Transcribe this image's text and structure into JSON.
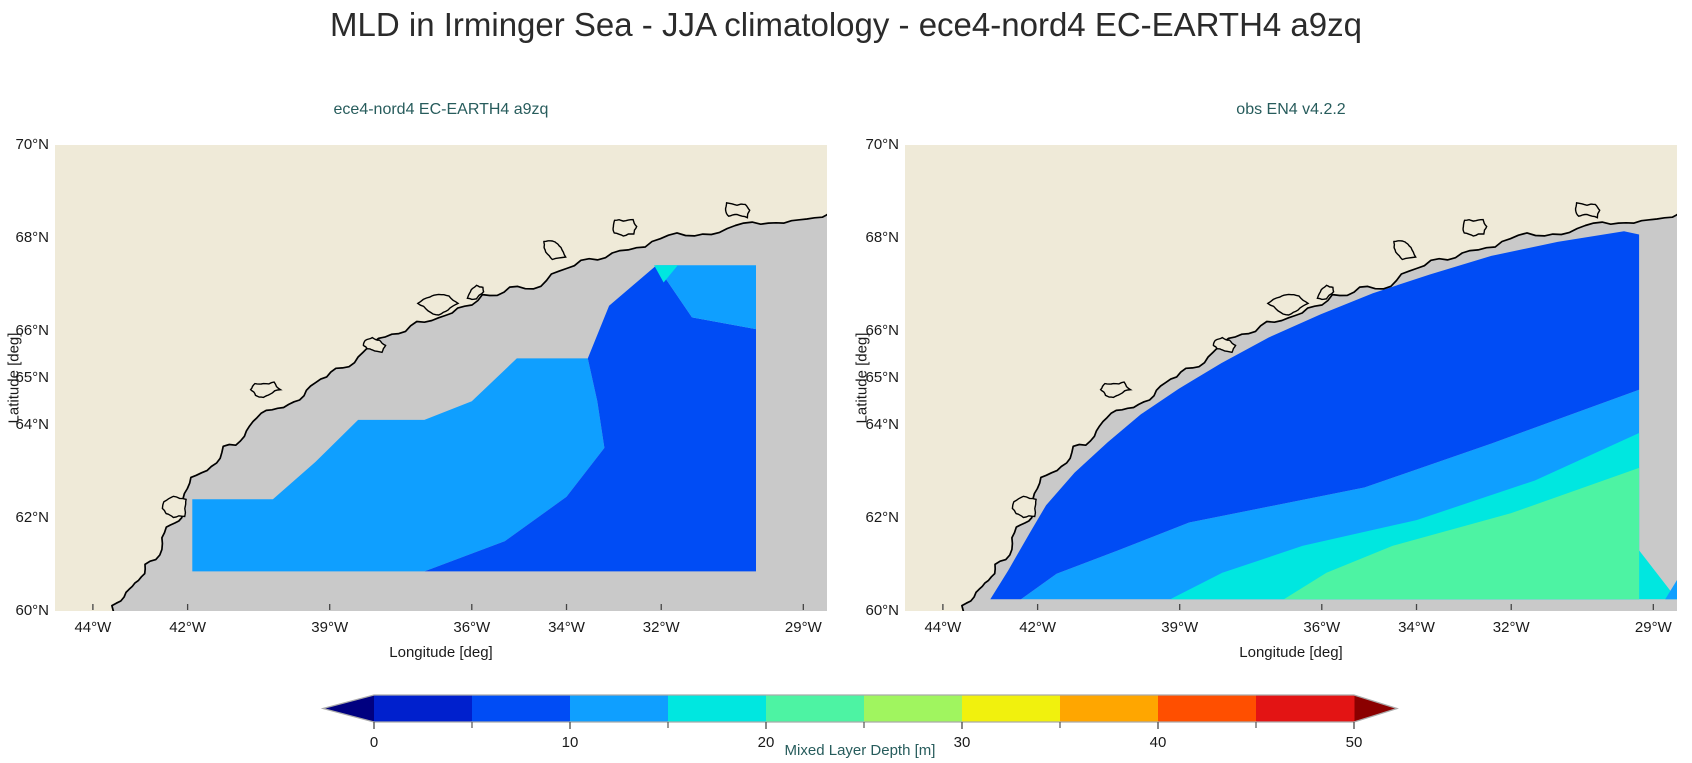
{
  "main_title": "MLD in Irminger Sea - JJA climatology - ece4-nord4 EC-EARTH4 a9zq",
  "colorbar": {
    "label": "Mixed Layer Depth [m]",
    "range": [
      0,
      50
    ],
    "levels": [
      0,
      5,
      10,
      15,
      20,
      25,
      30,
      35,
      40,
      45,
      50
    ],
    "colors": [
      "#0020cd",
      "#004cf5",
      "#0f9fff",
      "#00e7e0",
      "#4df3a3",
      "#a0f55f",
      "#f1f10d",
      "#ffa600",
      "#ff4f00",
      "#e31414"
    ],
    "under_color": "#000080",
    "over_color": "#8b0000",
    "outline_color": "#aaaaaa",
    "tick_color": "#555555",
    "ticks_major": {
      "values": [
        0,
        10,
        20,
        30,
        40,
        50
      ],
      "labels": [
        "0",
        "10",
        "20",
        "30",
        "40",
        "50"
      ]
    },
    "ticks_minor": [
      5,
      15,
      25,
      35,
      45
    ]
  },
  "map": {
    "land_color": "#efead8",
    "nodata_color": "#c9c9c9",
    "coastline_color": "#000000",
    "coast": [
      [
        -43.6,
        59.7
      ],
      [
        -43.3,
        60.4
      ],
      [
        -42.9,
        61.0
      ],
      [
        -42.45,
        61.8
      ],
      [
        -42.1,
        62.4
      ],
      [
        -41.5,
        63.1
      ],
      [
        -40.8,
        63.75
      ],
      [
        -40.1,
        64.35
      ],
      [
        -39.3,
        64.9
      ],
      [
        -38.4,
        65.45
      ],
      [
        -37.4,
        66.0
      ],
      [
        -36.3,
        66.5
      ],
      [
        -35.2,
        66.95
      ],
      [
        -34.0,
        67.35
      ],
      [
        -32.7,
        67.75
      ],
      [
        -31.3,
        68.05
      ],
      [
        -29.9,
        68.3
      ],
      [
        -28.6,
        68.45
      ],
      [
        -27.9,
        68.55
      ]
    ],
    "islands": [
      {
        "lon": -36.7,
        "lat": 66.6,
        "r": 0.22
      },
      {
        "lon": -34.3,
        "lat": 67.8,
        "r": 0.2
      },
      {
        "lon": -32.8,
        "lat": 68.25,
        "r": 0.18
      },
      {
        "lon": -40.4,
        "lat": 64.75,
        "r": 0.18
      },
      {
        "lon": -42.3,
        "lat": 62.2,
        "r": 0.2
      },
      {
        "lon": -30.4,
        "lat": 68.6,
        "r": 0.16
      },
      {
        "lon": -38.1,
        "lat": 65.7,
        "r": 0.15
      },
      {
        "lon": -35.9,
        "lat": 66.85,
        "r": 0.14
      }
    ]
  },
  "chart_data": [
    {
      "type": "heatmap",
      "title": "ece4-nord4 EC-EARTH4 a9zq",
      "xlabel": "Longitude [deg]",
      "ylabel": "Latitude [deg]",
      "units": "m",
      "xlim": [
        -44.8,
        -28.5
      ],
      "ylim": [
        60,
        70
      ],
      "xticks": {
        "values": [
          -44,
          -42,
          -39,
          -36,
          -34,
          -32,
          -29
        ],
        "labels": [
          "44°W",
          "42°W",
          "39°W",
          "36°W",
          "34°W",
          "32°W",
          "29°W"
        ]
      },
      "yticks": {
        "values": [
          70,
          68,
          66,
          65,
          64,
          62,
          60
        ],
        "labels": [
          "70°N",
          "68°N",
          "66°N",
          "65°N",
          "64°N",
          "62°N",
          "60°N"
        ]
      },
      "levels": [
        0,
        5,
        10,
        15,
        20,
        25,
        30,
        35,
        40,
        45,
        50
      ],
      "regions": [
        {
          "range_m": [
            10,
            15
          ],
          "polygon": [
            [
              -41.9,
              60.85
            ],
            [
              -37.0,
              60.85
            ],
            [
              -35.3,
              61.5
            ],
            [
              -34.0,
              62.45
            ],
            [
              -33.2,
              63.5
            ],
            [
              -33.35,
              64.5
            ],
            [
              -33.55,
              65.42
            ],
            [
              -35.05,
              65.42
            ],
            [
              -36.0,
              64.5
            ],
            [
              -37.0,
              64.1
            ],
            [
              -38.4,
              64.1
            ],
            [
              -39.3,
              63.2
            ],
            [
              -40.2,
              62.4
            ],
            [
              -41.9,
              62.4
            ]
          ]
        },
        {
          "range_m": [
            5,
            10
          ],
          "polygon": [
            [
              -37.0,
              60.85
            ],
            [
              -30.0,
              60.85
            ],
            [
              -30.0,
              66.05
            ],
            [
              -31.35,
              66.3
            ],
            [
              -32.1,
              67.42
            ],
            [
              -33.1,
              66.55
            ],
            [
              -33.55,
              65.42
            ],
            [
              -33.35,
              64.5
            ],
            [
              -33.2,
              63.5
            ],
            [
              -34.0,
              62.45
            ],
            [
              -35.3,
              61.5
            ]
          ]
        },
        {
          "range_m": [
            10,
            15
          ],
          "polygon": [
            [
              -32.1,
              67.42
            ],
            [
              -30.0,
              67.42
            ],
            [
              -30.0,
              66.05
            ],
            [
              -31.35,
              66.3
            ]
          ]
        },
        {
          "range_m": [
            15,
            20
          ],
          "polygon": [
            [
              -32.15,
              67.42
            ],
            [
              -31.65,
              67.42
            ],
            [
              -31.95,
              67.05
            ]
          ]
        }
      ]
    },
    {
      "type": "heatmap",
      "title": "obs EN4 v4.2.2",
      "xlabel": "Longitude [deg]",
      "ylabel": "Latitude [deg]",
      "units": "m",
      "xlim": [
        -44.8,
        -28.5
      ],
      "ylim": [
        60,
        70
      ],
      "xticks": {
        "values": [
          -44,
          -42,
          -39,
          -36,
          -34,
          -32,
          -29
        ],
        "labels": [
          "44°W",
          "42°W",
          "39°W",
          "36°W",
          "34°W",
          "32°W",
          "29°W"
        ]
      },
      "yticks": {
        "values": [
          70,
          68,
          66,
          65,
          64,
          62,
          60
        ],
        "labels": [
          "70°N",
          "68°N",
          "66°N",
          "65°N",
          "64°N",
          "62°N",
          "60°N"
        ]
      },
      "levels": [
        0,
        5,
        10,
        15,
        20,
        25,
        30,
        35,
        40,
        45,
        50
      ],
      "regions": [
        {
          "range_m": [
            10,
            15
          ],
          "polygon": [
            [
              -29.3,
              64.75
            ],
            [
              -32.4,
              63.6
            ],
            [
              -35.1,
              62.65
            ],
            [
              -38.8,
              61.9
            ],
            [
              -40.3,
              61.3
            ],
            [
              -41.6,
              60.8
            ],
            [
              -42.35,
              60.25
            ],
            [
              -29.3,
              60.25
            ]
          ]
        },
        {
          "range_m": [
            15,
            20
          ],
          "polygon": [
            [
              -29.3,
              63.82
            ],
            [
              -31.5,
              62.8
            ],
            [
              -34.0,
              61.95
            ],
            [
              -36.4,
              61.4
            ],
            [
              -38.1,
              60.82
            ],
            [
              -39.2,
              60.25
            ],
            [
              -29.3,
              60.25
            ]
          ]
        },
        {
          "range_m": [
            20,
            25
          ],
          "polygon": [
            [
              -29.3,
              63.07
            ],
            [
              -32.0,
              62.1
            ],
            [
              -34.5,
              61.4
            ],
            [
              -35.9,
              60.82
            ],
            [
              -36.8,
              60.25
            ],
            [
              -29.3,
              60.25
            ]
          ]
        },
        {
          "range_m": [
            5,
            10
          ],
          "polygon": [
            [
              -43.0,
              60.25
            ],
            [
              -42.62,
              60.87
            ],
            [
              -42.17,
              61.67
            ],
            [
              -41.82,
              62.27
            ],
            [
              -41.22,
              62.97
            ],
            [
              -40.52,
              63.62
            ],
            [
              -39.82,
              64.22
            ],
            [
              -39.02,
              64.77
            ],
            [
              -38.12,
              65.32
            ],
            [
              -37.12,
              65.87
            ],
            [
              -36.02,
              66.37
            ],
            [
              -34.92,
              66.82
            ],
            [
              -33.72,
              67.22
            ],
            [
              -32.42,
              67.62
            ],
            [
              -31.02,
              67.92
            ],
            [
              -29.62,
              68.15
            ],
            [
              -29.3,
              68.08
            ],
            [
              -29.3,
              64.75
            ],
            [
              -32.4,
              63.6
            ],
            [
              -35.1,
              62.65
            ],
            [
              -38.8,
              61.9
            ],
            [
              -40.3,
              61.3
            ],
            [
              -41.6,
              60.8
            ],
            [
              -42.35,
              60.25
            ]
          ]
        },
        {
          "range_m": [
            15,
            20
          ],
          "polygon": [
            [
              -29.3,
              61.3
            ],
            [
              -29.3,
              60.25
            ],
            [
              -28.5,
              60.25
            ]
          ]
        },
        {
          "range_m": [
            10,
            15
          ],
          "polygon": [
            [
              -28.75,
              60.25
            ],
            [
              -28.3,
              61.0
            ],
            [
              -28.3,
              60.25
            ]
          ]
        }
      ]
    }
  ]
}
